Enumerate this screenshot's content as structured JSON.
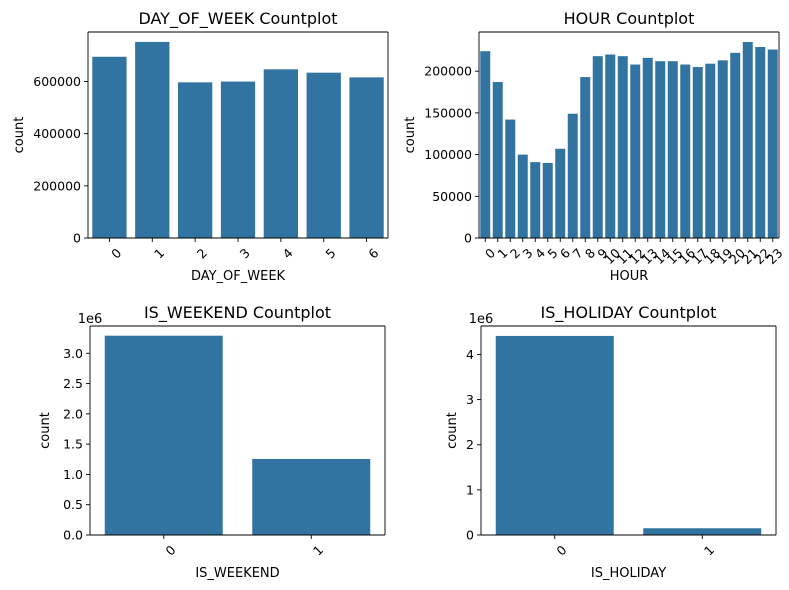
{
  "colors": {
    "bar": "#3274a1",
    "axis": "#000000",
    "background": "#ffffff"
  },
  "chart_data": [
    {
      "id": "dow",
      "type": "bar",
      "title": "DAY_OF_WEEK Countplot",
      "xlabel": "DAY_OF_WEEK",
      "ylabel": "count",
      "categories": [
        "0",
        "1",
        "2",
        "3",
        "4",
        "5",
        "6"
      ],
      "values": [
        695000,
        752000,
        597000,
        600000,
        647000,
        634000,
        616000
      ],
      "ylim": [
        0,
        790000
      ],
      "yticks": [
        0,
        200000,
        400000,
        600000
      ],
      "ytick_labels": [
        "0",
        "200000",
        "400000",
        "600000"
      ],
      "offset_label": "",
      "xtick_rotation": 45,
      "grid": false
    },
    {
      "id": "hour",
      "type": "bar",
      "title": "HOUR Countplot",
      "xlabel": "HOUR",
      "ylabel": "count",
      "categories": [
        "0",
        "1",
        "2",
        "3",
        "4",
        "5",
        "6",
        "7",
        "8",
        "9",
        "10",
        "11",
        "12",
        "13",
        "14",
        "15",
        "16",
        "17",
        "18",
        "19",
        "20",
        "21",
        "22",
        "23"
      ],
      "values": [
        224000,
        187000,
        142000,
        100000,
        91000,
        90000,
        107000,
        149000,
        193000,
        218000,
        220000,
        218000,
        208000,
        216000,
        212000,
        212000,
        208000,
        205000,
        209000,
        213000,
        222000,
        235000,
        229000,
        226000
      ],
      "ylim": [
        0,
        247000
      ],
      "yticks": [
        0,
        50000,
        100000,
        150000,
        200000
      ],
      "ytick_labels": [
        "0",
        "50000",
        "100000",
        "150000",
        "200000"
      ],
      "offset_label": "",
      "xtick_rotation": 45,
      "grid": false
    },
    {
      "id": "weekend",
      "type": "bar",
      "title": "IS_WEEKEND Countplot",
      "xlabel": "IS_WEEKEND",
      "ylabel": "count",
      "categories": [
        "0",
        "1"
      ],
      "values": [
        3290000,
        1255000
      ],
      "ylim": [
        0,
        3450000
      ],
      "yticks": [
        0,
        500000,
        1000000,
        1500000,
        2000000,
        2500000,
        3000000
      ],
      "ytick_labels": [
        "0.0",
        "0.5",
        "1.0",
        "1.5",
        "2.0",
        "2.5",
        "3.0"
      ],
      "offset_label": "1e6",
      "xtick_rotation": 45,
      "grid": false
    },
    {
      "id": "holiday",
      "type": "bar",
      "title": "IS_HOLIDAY Countplot",
      "xlabel": "IS_HOLIDAY",
      "ylabel": "count",
      "categories": [
        "0",
        "1"
      ],
      "values": [
        4410000,
        150000
      ],
      "ylim": [
        0,
        4630000
      ],
      "yticks": [
        0,
        1000000,
        2000000,
        3000000,
        4000000
      ],
      "ytick_labels": [
        "0",
        "1",
        "2",
        "3",
        "4"
      ],
      "offset_label": "1e6",
      "xtick_rotation": 45,
      "grid": false
    }
  ]
}
